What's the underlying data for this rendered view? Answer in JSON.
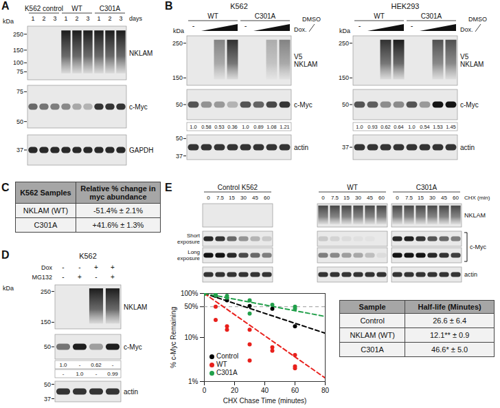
{
  "panels": {
    "A": {
      "letter": "A",
      "unit": "kDa",
      "lane_axis_label": "days",
      "groups": [
        {
          "label": "K562 control",
          "lanes": [
            "1",
            "2",
            "3"
          ]
        },
        {
          "label": "WT",
          "lanes": [
            "1",
            "2",
            "3"
          ]
        },
        {
          "label": "C301A",
          "lanes": [
            "1",
            "2",
            "3"
          ]
        }
      ],
      "rows": [
        {
          "label": "NKLAM",
          "markers": [
            250,
            150,
            100,
            75
          ]
        },
        {
          "label": "c-Myc",
          "markers": [
            75,
            50
          ]
        },
        {
          "label": "GAPDH",
          "markers": [
            37
          ]
        }
      ]
    },
    "B": {
      "letter": "B",
      "treatment": {
        "control": "DMSO",
        "treated": "Dox."
      },
      "blots": [
        {
          "title": "K562",
          "unit": "kDa",
          "groups": [
            {
              "label": "WT",
              "lanes": [
                "-",
                null,
                null,
                null
              ]
            },
            {
              "label": "C301A",
              "lanes": [
                "-",
                null,
                null,
                null
              ]
            }
          ],
          "rows": [
            {
              "label": "V5 NKLAM",
              "markers": [
                250,
                150
              ]
            },
            {
              "label": "c-Myc",
              "markers": [
                50
              ]
            },
            {
              "label": "actin",
              "markers": [
                50,
                37
              ]
            }
          ],
          "quantification": [
            "1.0",
            "0.58",
            "0.53",
            "0.36",
            "1.0",
            "0.89",
            "1.08",
            "1.21"
          ]
        },
        {
          "title": "HEK293",
          "unit": "kDa",
          "groups": [
            {
              "label": "WT",
              "lanes": [
                "-",
                null,
                null,
                null
              ]
            },
            {
              "label": "C301A",
              "lanes": [
                "-",
                null,
                null,
                null
              ]
            }
          ],
          "rows": [
            {
              "label": "V5 NKLAM",
              "markers": [
                250,
                150
              ]
            },
            {
              "label": "c-Myc",
              "markers": [
                50
              ]
            },
            {
              "label": "actin",
              "markers": [
                37
              ]
            }
          ],
          "quantification": [
            "1.0",
            "0.93",
            "0.62",
            "0.64",
            "1.0",
            "0.54",
            "1.53",
            "1.45"
          ]
        }
      ]
    },
    "C": {
      "letter": "C",
      "table": {
        "header": [
          "K562 Samples",
          "Relative % change in myc abundance"
        ],
        "rows": [
          [
            "NKLAM (WT)",
            "-51.4% ± 2.1%"
          ],
          [
            "C301A",
            "+41.6% ± 1.3%"
          ]
        ]
      }
    },
    "D": {
      "letter": "D",
      "title": "K562",
      "unit": "kDa",
      "treatments": [
        {
          "label": "Dox",
          "signs": [
            "-",
            "-",
            "+",
            "+"
          ]
        },
        {
          "label": "MG132",
          "signs": [
            "-",
            "+",
            "-",
            "+"
          ]
        }
      ],
      "rows": [
        {
          "label": "NKLAM",
          "markers": [
            250,
            150
          ]
        },
        {
          "label": "c-Myc",
          "markers": [
            50
          ]
        },
        {
          "label": "actin",
          "markers": [
            50,
            37
          ]
        }
      ],
      "quantification": [
        [
          "1.0",
          "-",
          "0.62",
          "-"
        ],
        [
          "-",
          "1.0",
          "-",
          "0.99"
        ]
      ]
    },
    "E": {
      "letter": "E",
      "lane_axis_label": "CHX (min)",
      "groups": [
        {
          "label": "Control K562",
          "lanes": [
            "0",
            "7.5",
            "15",
            "30",
            "45",
            "60"
          ]
        },
        {
          "label": "WT",
          "lanes": [
            "0",
            "7.5",
            "15",
            "30",
            "45",
            "60"
          ]
        },
        {
          "label": "C301A",
          "lanes": [
            "0",
            "7.5",
            "15",
            "30",
            "45",
            "60"
          ]
        }
      ],
      "rows": [
        {
          "label": "NKLAM"
        },
        {
          "label": "Short exposure"
        },
        {
          "label": "Long exposure"
        },
        {
          "label": "actin"
        }
      ],
      "bracket": {
        "label": "c-Myc",
        "rows": [
          "Short exposure",
          "Long exposure"
        ]
      },
      "table": {
        "header": [
          "Sample",
          "Half-life (Minutes)"
        ],
        "rows": [
          [
            "Control",
            "26.6 ± 6.4"
          ],
          [
            "NKLAM (WT)",
            "12.1** ± 0.9"
          ],
          [
            "C301A",
            "46.6* ± 5.0"
          ]
        ]
      }
    }
  },
  "chart_data": {
    "type": "scatter",
    "x_label": "CHX Chase Time (minutes)",
    "y_label": "% c-Myc Remaining",
    "xlim": [
      0,
      80
    ],
    "xticks": [
      0,
      20,
      40,
      60,
      80
    ],
    "ylim": [
      1,
      100
    ],
    "yticks": [
      {
        "value": 1,
        "label": "1%"
      },
      {
        "value": 10,
        "label": "10%"
      },
      {
        "value": 50,
        "label": "50%"
      },
      {
        "value": 100,
        "label": "100%"
      }
    ],
    "log": "y",
    "grid": false,
    "legend": "bottom-left",
    "reference_value": 50,
    "series": [
      {
        "name": "Control",
        "color": "#000000",
        "marker": "circle",
        "x": [
          0,
          7.5,
          15,
          30,
          45,
          60
        ],
        "values": [
          100,
          88,
          70,
          52,
          45,
          18
        ],
        "fit": {
          "line_style": "dashed",
          "x": [
            0,
            80
          ],
          "values": [
            100,
            12.5
          ]
        }
      },
      {
        "name": "WT",
        "color": "#e8201c",
        "marker": "circle",
        "x": [
          0,
          0,
          7.5,
          7.5,
          15,
          15,
          30,
          30,
          30,
          45,
          45,
          60,
          60,
          60
        ],
        "values": [
          100,
          98,
          50,
          25,
          18,
          15,
          15,
          7,
          3,
          6,
          5,
          4,
          2.2,
          2
        ],
        "fit": {
          "line_style": "dashed",
          "x": [
            0,
            80
          ],
          "values": [
            100,
            1.2
          ]
        }
      },
      {
        "name": "C301A",
        "color": "#22a04b",
        "marker": "circle",
        "x": [
          0,
          0,
          7.5,
          7.5,
          15,
          15,
          30,
          30,
          45,
          60,
          60
        ],
        "values": [
          100,
          97,
          95,
          90,
          88,
          80,
          70,
          35,
          55,
          50,
          45
        ],
        "fit": {
          "line_style": "dashed",
          "x": [
            0,
            80
          ],
          "values": [
            100,
            30
          ]
        }
      }
    ]
  }
}
